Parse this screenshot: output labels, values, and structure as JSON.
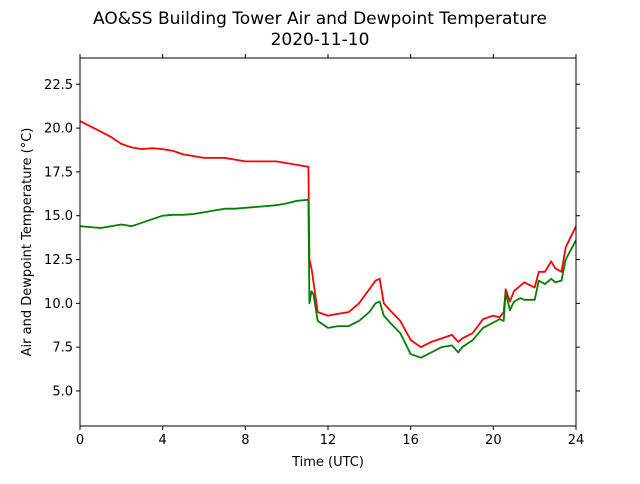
{
  "chart_data": {
    "type": "line",
    "title": "AO&SS Building Tower Air and Dewpoint Temperature",
    "subtitle": "2020-11-10",
    "xlabel": "Time (UTC)",
    "ylabel": "Air and Dewpoint Temperature (°C)",
    "xlim": [
      0,
      24
    ],
    "ylim": [
      3.0,
      24.0
    ],
    "xticks": [
      0,
      4,
      8,
      12,
      16,
      20,
      24
    ],
    "xtick_labels": [
      "0",
      "4",
      "8",
      "12",
      "16",
      "20",
      "24"
    ],
    "yticks": [
      5.0,
      7.5,
      10.0,
      12.5,
      15.0,
      17.5,
      20.0,
      22.5
    ],
    "ytick_labels": [
      "5.0",
      "7.5",
      "10.0",
      "12.5",
      "15.0",
      "17.5",
      "20.0",
      "22.5"
    ],
    "grid": false,
    "series": [
      {
        "color": "#ff0000",
        "x": [
          0,
          0.5,
          1,
          1.5,
          2,
          2.5,
          3,
          3.5,
          4,
          4.5,
          5,
          5.5,
          6,
          6.5,
          7,
          7.5,
          8,
          8.5,
          9,
          9.5,
          10,
          10.5,
          11,
          11.05,
          11.1,
          11.2,
          11.3,
          11.5,
          12,
          12.5,
          13,
          13.5,
          14,
          14.3,
          14.5,
          14.7,
          15,
          15.5,
          16,
          16.5,
          17,
          17.5,
          18,
          18.3,
          18.5,
          19,
          19.5,
          20,
          20.3,
          20.5,
          20.6,
          20.8,
          21,
          21.3,
          21.5,
          22,
          22.2,
          22.5,
          22.8,
          23,
          23.3,
          23.5,
          24
        ],
        "values": [
          20.4,
          20.1,
          19.8,
          19.5,
          19.1,
          18.9,
          18.8,
          18.85,
          18.8,
          18.7,
          18.5,
          18.4,
          18.3,
          18.3,
          18.3,
          18.2,
          18.1,
          18.1,
          18.1,
          18.1,
          18.0,
          17.9,
          17.8,
          17.8,
          12.5,
          12.0,
          11.2,
          9.5,
          9.3,
          9.4,
          9.5,
          10.0,
          10.8,
          11.3,
          11.4,
          10.0,
          9.6,
          9.0,
          7.9,
          7.5,
          7.8,
          8.0,
          8.2,
          7.8,
          8.0,
          8.3,
          9.1,
          9.3,
          9.2,
          9.5,
          10.8,
          10.1,
          10.7,
          11.0,
          11.2,
          10.9,
          11.8,
          11.8,
          12.4,
          12.0,
          11.8,
          13.2,
          14.4
        ]
      },
      {
        "color": "#008000",
        "x": [
          0,
          0.5,
          1,
          1.5,
          2,
          2.5,
          3,
          3.5,
          4,
          4.5,
          5,
          5.5,
          6,
          6.5,
          7,
          7.5,
          8,
          8.5,
          9,
          9.5,
          10,
          10.5,
          11,
          11.05,
          11.1,
          11.2,
          11.3,
          11.5,
          12,
          12.5,
          13,
          13.5,
          14,
          14.3,
          14.5,
          14.7,
          15,
          15.5,
          16,
          16.5,
          17,
          17.5,
          18,
          18.3,
          18.5,
          19,
          19.5,
          20,
          20.3,
          20.5,
          20.6,
          20.8,
          21,
          21.3,
          21.5,
          22,
          22.2,
          22.5,
          22.8,
          23,
          23.3,
          23.5,
          24
        ],
        "values": [
          14.4,
          14.35,
          14.3,
          14.4,
          14.5,
          14.4,
          14.6,
          14.8,
          15.0,
          15.05,
          15.05,
          15.1,
          15.2,
          15.3,
          15.4,
          15.4,
          15.45,
          15.5,
          15.55,
          15.6,
          15.7,
          15.85,
          15.9,
          15.9,
          10.0,
          10.7,
          10.5,
          9.0,
          8.6,
          8.7,
          8.7,
          9.0,
          9.5,
          10.0,
          10.1,
          9.3,
          8.9,
          8.3,
          7.1,
          6.9,
          7.2,
          7.5,
          7.6,
          7.2,
          7.5,
          7.9,
          8.6,
          8.9,
          9.1,
          9.0,
          10.6,
          9.6,
          10.1,
          10.3,
          10.2,
          10.2,
          11.3,
          11.1,
          11.4,
          11.2,
          11.3,
          12.5,
          13.6
        ]
      }
    ]
  }
}
